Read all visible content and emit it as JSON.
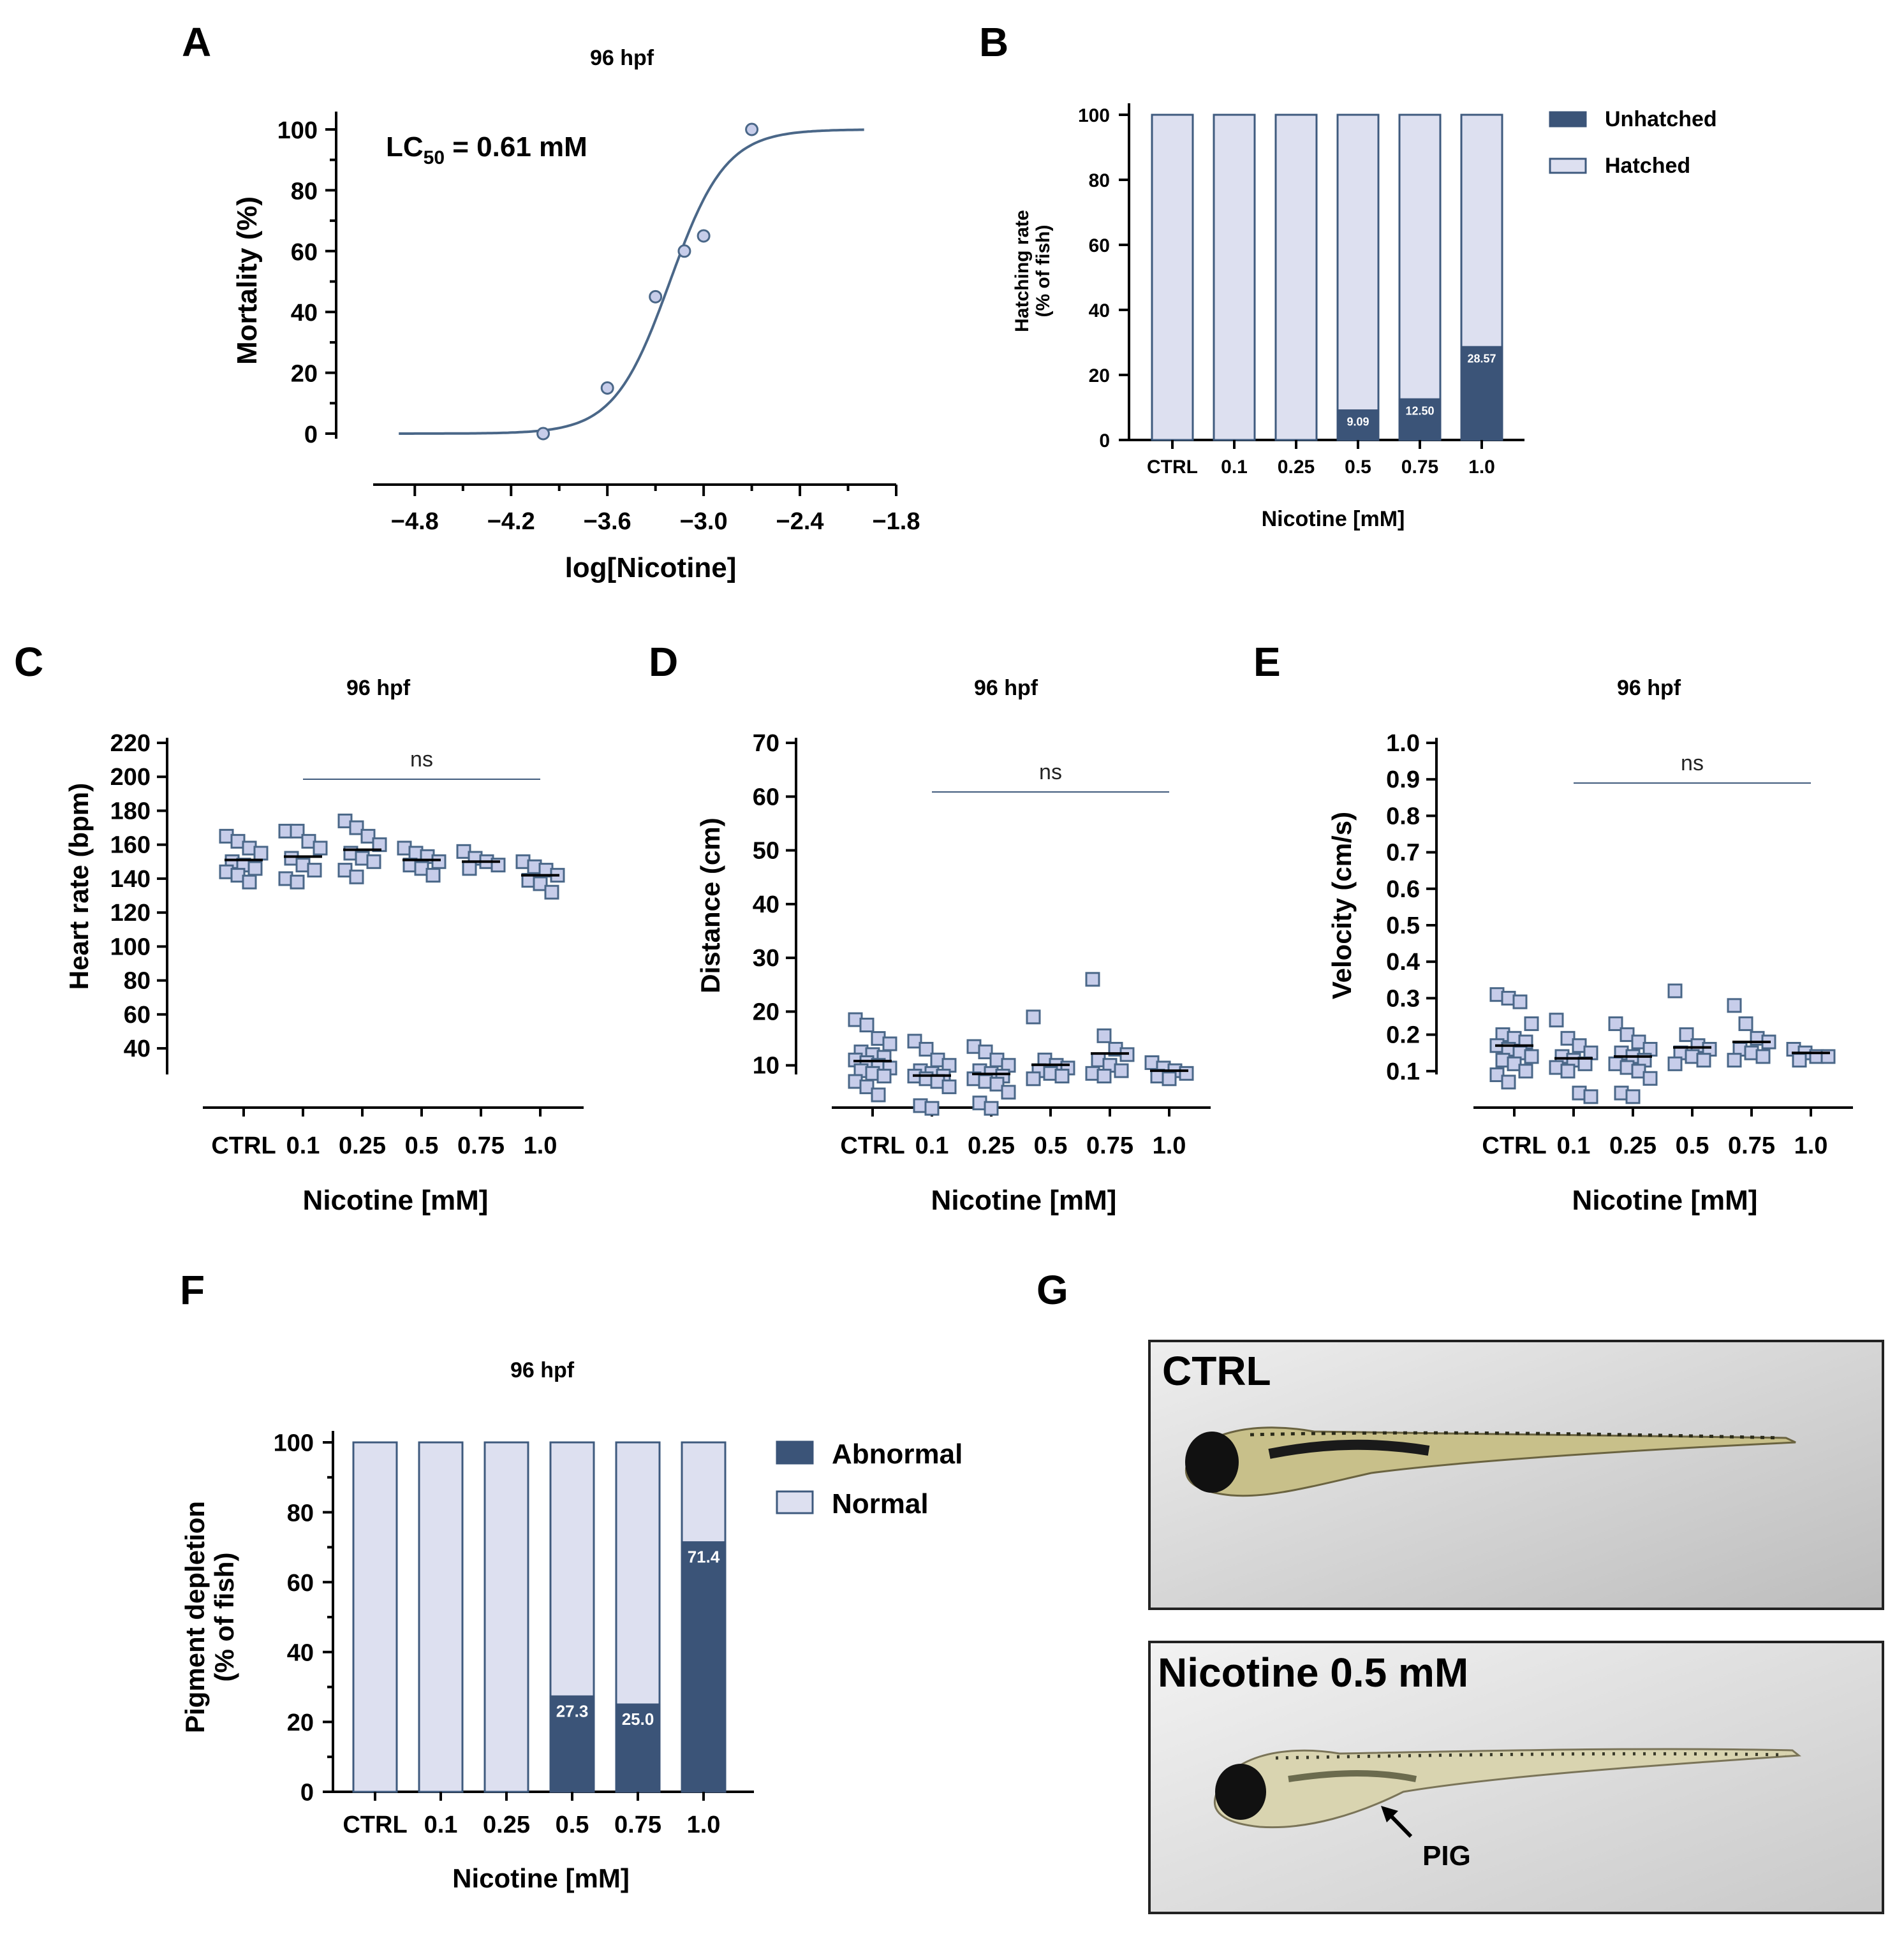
{
  "panels": {
    "A": {
      "label": "A",
      "title": "96 hpf",
      "lc50_prefix": "LC",
      "lc50_sub": "50",
      "lc50_suffix": " = 0.61 mM"
    },
    "B": {
      "label": "B"
    },
    "C": {
      "label": "C",
      "title": "96 hpf",
      "ns": "ns"
    },
    "D": {
      "label": "D",
      "title": "96 hpf",
      "ns": "ns"
    },
    "E": {
      "label": "E",
      "title": "96 hpf",
      "ns": "ns"
    },
    "F": {
      "label": "F",
      "title": "96 hpf"
    },
    "G": {
      "label": "G",
      "ctrl_caption": "CTRL",
      "nic_caption": "Nicotine 0.5 mM",
      "arrow_label": "PIG"
    }
  },
  "colors": {
    "dark": "#3b5478",
    "light": "#dde0f0",
    "point_fill": "#c7cdea",
    "point_edge": "#4a6788",
    "curve": "#4a6788"
  },
  "chart_data": [
    {
      "id": "A",
      "type": "line",
      "title": "96 hpf",
      "xlabel": "log[Nicotine]",
      "ylabel": "Mortality (%)",
      "xlim": [
        -5.0,
        -1.8
      ],
      "ylim": [
        0,
        100
      ],
      "xticks": [
        -4.8,
        -4.2,
        -3.6,
        -3.0,
        -2.4,
        -1.8
      ],
      "xtick_labels": [
        "−4.8",
        "−4.2",
        "−3.6",
        "−3.0",
        "−2.4",
        "−1.8"
      ],
      "yticks": [
        0,
        20,
        40,
        60,
        80,
        100
      ],
      "points": [
        {
          "x": -4.0,
          "y": 0
        },
        {
          "x": -3.6,
          "y": 15
        },
        {
          "x": -3.3,
          "y": 45
        },
        {
          "x": -3.12,
          "y": 60
        },
        {
          "x": -3.0,
          "y": 65
        },
        {
          "x": -2.7,
          "y": 100
        }
      ],
      "fit": {
        "logEC50": -3.21,
        "hill": 2.5,
        "bottom": 0,
        "top": 100,
        "x_from": -4.9,
        "x_to": -2.0
      },
      "annotation": "LC50 = 0.61 mM"
    },
    {
      "id": "B",
      "type": "bar",
      "stacked": true,
      "ylabel_line1": "Hatching rate",
      "ylabel_line2": "(% of fish)",
      "xlabel": "Nicotine [mM]",
      "categories": [
        "CTRL",
        "0.1",
        "0.25",
        "0.5",
        "0.75",
        "1.0"
      ],
      "series": [
        {
          "name": "Unhatched",
          "values": [
            0,
            0,
            0,
            9.09,
            12.5,
            28.57
          ]
        },
        {
          "name": "Hatched",
          "values": [
            100,
            100,
            100,
            90.91,
            87.5,
            71.43
          ]
        }
      ],
      "data_labels": [
        "",
        "",
        "",
        "9.09",
        "12.50",
        "28.57"
      ],
      "ylim": [
        0,
        100
      ],
      "yticks": [
        0,
        20,
        40,
        60,
        80,
        100
      ],
      "legend": [
        "Unhatched",
        "Hatched"
      ]
    },
    {
      "id": "C",
      "type": "scatter",
      "title": "96 hpf",
      "ylabel": "Heart rate (bpm)",
      "xlabel": "Nicotine [mM]",
      "categories": [
        "CTRL",
        "0.1",
        "0.25",
        "0.5",
        "0.75",
        "1.0"
      ],
      "ylim": [
        25,
        220
      ],
      "yticks": [
        40,
        60,
        80,
        100,
        120,
        140,
        160,
        180,
        200,
        220
      ],
      "means": [
        151,
        153,
        157,
        151,
        150,
        142
      ],
      "groups": [
        [
          165,
          162,
          158,
          155,
          150,
          148,
          146,
          144,
          142,
          138
        ],
        [
          168,
          168,
          162,
          158,
          152,
          148,
          145,
          140,
          138
        ],
        [
          174,
          170,
          165,
          160,
          155,
          152,
          150,
          145,
          141
        ],
        [
          158,
          155,
          153,
          150,
          148,
          146,
          142
        ],
        [
          156,
          152,
          150,
          148,
          146
        ],
        [
          150,
          147,
          145,
          142,
          139,
          137,
          132
        ]
      ],
      "ns": "ns",
      "ns_from": 1,
      "ns_to": 5
    },
    {
      "id": "D",
      "type": "scatter",
      "title": "96 hpf",
      "ylabel": "Distance (cm)",
      "xlabel": "Nicotine [mM]",
      "categories": [
        "CTRL",
        "0.1",
        "0.25",
        "0.5",
        "0.75",
        "1.0"
      ],
      "ylim": [
        0,
        70
      ],
      "yticks": [
        10,
        20,
        30,
        40,
        50,
        60,
        70
      ],
      "means": [
        10.8,
        8.1,
        8.4,
        10.1,
        12.2,
        9.0
      ],
      "groups": [
        [
          18.5,
          17.5,
          15,
          14,
          12.5,
          12,
          11.5,
          11,
          10.5,
          10,
          9.5,
          9,
          8.5,
          8,
          7,
          6,
          4.5
        ],
        [
          14.5,
          13,
          11,
          10,
          9,
          8.5,
          8,
          8,
          7.5,
          7,
          6,
          2.5,
          2
        ],
        [
          13.5,
          12.5,
          11,
          10,
          9,
          8.5,
          8,
          7.5,
          7,
          6.5,
          5,
          3,
          2
        ],
        [
          19,
          11,
          10,
          9.5,
          9,
          8.5,
          8,
          7.5
        ],
        [
          26,
          15.5,
          13,
          12,
          11,
          10,
          9,
          8.5,
          8
        ],
        [
          10.5,
          9.5,
          9,
          8.5,
          8,
          7.5
        ]
      ],
      "ns": "ns",
      "ns_from": 1,
      "ns_to": 5
    },
    {
      "id": "E",
      "type": "scatter",
      "title": "96 hpf",
      "ylabel": "Velocity (cm/s)",
      "xlabel": "Nicotine [mM]",
      "categories": [
        "CTRL",
        "0.1",
        "0.25",
        "0.5",
        "0.75",
        "1.0"
      ],
      "ylim": [
        0,
        1.0
      ],
      "yticks": [
        0.1,
        0.2,
        0.3,
        0.4,
        0.5,
        0.6,
        0.7,
        0.8,
        0.9,
        1.0
      ],
      "means": [
        0.17,
        0.135,
        0.14,
        0.165,
        0.18,
        0.15
      ],
      "groups": [
        [
          0.31,
          0.3,
          0.29,
          0.23,
          0.2,
          0.19,
          0.18,
          0.17,
          0.16,
          0.15,
          0.14,
          0.13,
          0.12,
          0.1,
          0.09,
          0.07
        ],
        [
          0.24,
          0.19,
          0.17,
          0.15,
          0.14,
          0.13,
          0.12,
          0.11,
          0.1,
          0.04,
          0.03
        ],
        [
          0.23,
          0.2,
          0.18,
          0.16,
          0.15,
          0.14,
          0.13,
          0.12,
          0.11,
          0.1,
          0.08,
          0.04,
          0.03
        ],
        [
          0.32,
          0.2,
          0.17,
          0.16,
          0.15,
          0.14,
          0.13,
          0.12
        ],
        [
          0.28,
          0.23,
          0.19,
          0.18,
          0.16,
          0.15,
          0.14,
          0.13
        ],
        [
          0.16,
          0.15,
          0.14,
          0.14,
          0.13
        ]
      ],
      "ns": "ns",
      "ns_from": 1,
      "ns_to": 5
    },
    {
      "id": "F",
      "type": "bar",
      "stacked": true,
      "title": "96 hpf",
      "ylabel_line1": "Pigment depletion",
      "ylabel_line2": "(% of fish)",
      "xlabel": "Nicotine [mM]",
      "categories": [
        "CTRL",
        "0.1",
        "0.25",
        "0.5",
        "0.75",
        "1.0"
      ],
      "series": [
        {
          "name": "Abnormal",
          "values": [
            0,
            0,
            0,
            27.3,
            25.0,
            71.4
          ]
        },
        {
          "name": "Normal",
          "values": [
            100,
            100,
            100,
            72.7,
            75.0,
            28.6
          ]
        }
      ],
      "data_labels": [
        "",
        "",
        "",
        "27.3",
        "25.0",
        "71.4"
      ],
      "ylim": [
        0,
        100
      ],
      "yticks": [
        0,
        20,
        40,
        60,
        80,
        100
      ],
      "legend": [
        "Abnormal",
        "Normal"
      ]
    }
  ]
}
